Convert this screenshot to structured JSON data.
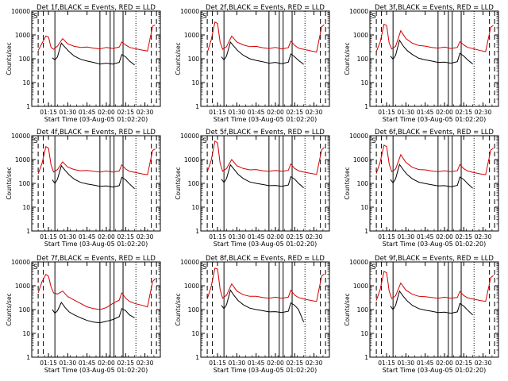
{
  "colors": {
    "events": "#000000",
    "lld": "#d40000",
    "axis": "#000000"
  },
  "chart_data": {
    "type": "line",
    "y_scale": "log",
    "ylim": [
      1,
      10000
    ],
    "ylabel": "Counts/sec",
    "xlabel": "Start Time (03-Aug-05 01:02:20)",
    "x_range": [
      "01:02",
      "02:42"
    ],
    "x_ticks": [
      "01:15",
      "01:30",
      "01:45",
      "02:00",
      "02:15",
      "02:30"
    ],
    "y_ticks": [
      "1",
      "10",
      "100",
      "1000",
      "10000"
    ],
    "shared_series": [
      {
        "name": "Events"
      },
      {
        "name": "LLD"
      }
    ],
    "marker_lines_dashed": [
      "01:07",
      "01:11",
      "02:35",
      "02:39"
    ],
    "marker_lines_solid": [
      "01:20",
      "01:55",
      "02:03",
      "02:06",
      "02:13"
    ],
    "marker_lines_dotted": [
      "02:23"
    ],
    "panels": [
      {
        "title": "Det 1f,BLACK = Events, RED = LLD",
        "corner": "S",
        "lld": {
          "x": [
            "01:07",
            "01:10",
            "01:13",
            "01:15",
            "01:17",
            "01:19",
            "01:22",
            "01:26",
            "01:30",
            "01:35",
            "01:40",
            "01:45",
            "01:50",
            "01:55",
            "02:00",
            "02:05",
            "02:10",
            "02:12",
            "02:15",
            "02:18",
            "02:22",
            "02:28",
            "02:32",
            "02:36",
            "02:38"
          ],
          "y": [
            220,
            450,
            900,
            820,
            300,
            250,
            340,
            700,
            420,
            330,
            300,
            310,
            280,
            260,
            300,
            270,
            310,
            500,
            380,
            300,
            270,
            230,
            210,
            2300,
            2600
          ]
        },
        "events": {
          "x": [
            "01:18",
            "01:20",
            "01:22",
            "01:25",
            "01:28",
            "01:31",
            "01:35",
            "01:40",
            "01:45",
            "01:50",
            "01:55",
            "02:00",
            "02:05",
            "02:10",
            "02:12",
            "02:15",
            "02:18",
            "02:22"
          ],
          "y": [
            110,
            90,
            120,
            450,
            300,
            200,
            130,
            95,
            80,
            70,
            60,
            65,
            60,
            70,
            150,
            120,
            80,
            55
          ]
        }
      },
      {
        "title": "Det 2f,BLACK = Events, RED = LLD",
        "corner": "S",
        "lld": {
          "x": [
            "01:07",
            "01:10",
            "01:13",
            "01:15",
            "01:17",
            "01:19",
            "01:22",
            "01:26",
            "01:30",
            "01:35",
            "01:40",
            "01:45",
            "01:50",
            "01:55",
            "02:00",
            "02:05",
            "02:10",
            "02:12",
            "02:15",
            "02:18",
            "02:22",
            "02:28",
            "02:32",
            "02:36",
            "02:38"
          ],
          "y": [
            180,
            600,
            3500,
            3000,
            500,
            250,
            320,
            900,
            500,
            380,
            320,
            330,
            290,
            270,
            300,
            260,
            290,
            550,
            360,
            280,
            250,
            210,
            190,
            2200,
            2700
          ]
        },
        "events": {
          "x": [
            "01:18",
            "01:20",
            "01:22",
            "01:25",
            "01:28",
            "01:31",
            "01:35",
            "01:40",
            "01:45",
            "01:50",
            "01:55",
            "02:00",
            "02:05",
            "02:10",
            "02:12",
            "02:15",
            "02:18",
            "02:22"
          ],
          "y": [
            120,
            90,
            130,
            500,
            320,
            210,
            140,
            100,
            85,
            75,
            65,
            70,
            62,
            72,
            160,
            120,
            85,
            58
          ]
        }
      },
      {
        "title": "Det 3f,BLACK = Events, RED = LLD",
        "corner": "S",
        "lld": {
          "x": [
            "01:07",
            "01:10",
            "01:13",
            "01:15",
            "01:17",
            "01:19",
            "01:22",
            "01:26",
            "01:30",
            "01:35",
            "01:40",
            "01:45",
            "01:50",
            "01:55",
            "02:00",
            "02:05",
            "02:10",
            "02:12",
            "02:15",
            "02:18",
            "02:22",
            "02:28",
            "02:32",
            "02:36",
            "02:38"
          ],
          "y": [
            200,
            500,
            2800,
            2500,
            450,
            260,
            330,
            1500,
            700,
            450,
            360,
            340,
            300,
            280,
            310,
            270,
            300,
            520,
            380,
            300,
            270,
            220,
            200,
            2100,
            2500
          ]
        },
        "events": {
          "x": [
            "01:18",
            "01:20",
            "01:22",
            "01:25",
            "01:28",
            "01:31",
            "01:35",
            "01:40",
            "01:45",
            "01:50",
            "01:55",
            "02:00",
            "02:05",
            "02:10",
            "02:12",
            "02:15",
            "02:18",
            "02:22"
          ],
          "y": [
            130,
            95,
            140,
            600,
            340,
            220,
            150,
            105,
            90,
            80,
            70,
            72,
            65,
            75,
            170,
            130,
            90,
            60
          ]
        }
      },
      {
        "title": "Det 4f,BLACK = Events, RED = LLD",
        "corner": "S",
        "lld": {
          "x": [
            "01:07",
            "01:10",
            "01:13",
            "01:15",
            "01:17",
            "01:19",
            "01:22",
            "01:26",
            "01:30",
            "01:35",
            "01:40",
            "01:45",
            "01:50",
            "01:55",
            "02:00",
            "02:05",
            "02:10",
            "02:12",
            "02:15",
            "02:18",
            "02:22",
            "02:28",
            "02:32",
            "02:36",
            "02:38"
          ],
          "y": [
            250,
            700,
            3500,
            3000,
            600,
            300,
            380,
            800,
            480,
            380,
            340,
            350,
            320,
            300,
            330,
            300,
            330,
            600,
            400,
            320,
            290,
            250,
            230,
            2400,
            2800
          ]
        },
        "events": {
          "x": [
            "01:18",
            "01:20",
            "01:22",
            "01:25",
            "01:28",
            "01:31",
            "01:35",
            "01:40",
            "01:45",
            "01:50",
            "01:55",
            "02:00",
            "02:05",
            "02:10",
            "02:12",
            "02:15",
            "02:18",
            "02:22"
          ],
          "y": [
            140,
            100,
            150,
            550,
            350,
            230,
            150,
            110,
            95,
            85,
            75,
            78,
            70,
            80,
            180,
            140,
            95,
            60
          ]
        }
      },
      {
        "title": "Det 5f,BLACK = Events, RED = LLD",
        "corner": "S",
        "lld": {
          "x": [
            "01:07",
            "01:10",
            "01:13",
            "01:15",
            "01:17",
            "01:19",
            "01:22",
            "01:26",
            "01:30",
            "01:35",
            "01:40",
            "01:45",
            "01:50",
            "01:55",
            "02:00",
            "02:05",
            "02:10",
            "02:12",
            "02:15",
            "02:18",
            "02:22",
            "02:28",
            "02:32",
            "02:36",
            "02:38"
          ],
          "y": [
            300,
            900,
            6000,
            5000,
            700,
            320,
            420,
            1000,
            550,
            420,
            370,
            380,
            340,
            320,
            350,
            320,
            350,
            650,
            420,
            340,
            300,
            260,
            240,
            2600,
            3200
          ]
        },
        "events": {
          "x": [
            "01:18",
            "01:20",
            "01:22",
            "01:25",
            "01:28",
            "01:31",
            "01:35",
            "01:40",
            "01:45",
            "01:50",
            "01:55",
            "02:00",
            "02:05",
            "02:10",
            "02:12",
            "02:15",
            "02:18",
            "02:22"
          ],
          "y": [
            150,
            110,
            160,
            600,
            380,
            240,
            160,
            115,
            100,
            90,
            80,
            82,
            75,
            85,
            190,
            150,
            100,
            65
          ]
        }
      },
      {
        "title": "Det 6f,BLACK = Events, RED = LLD",
        "corner": "S",
        "lld": {
          "x": [
            "01:07",
            "01:10",
            "01:13",
            "01:15",
            "01:17",
            "01:19",
            "01:22",
            "01:26",
            "01:30",
            "01:35",
            "01:40",
            "01:45",
            "01:50",
            "01:55",
            "02:00",
            "02:05",
            "02:10",
            "02:12",
            "02:15",
            "02:18",
            "02:22",
            "02:28",
            "02:32",
            "02:36",
            "02:38"
          ],
          "y": [
            260,
            800,
            4000,
            3500,
            650,
            310,
            400,
            1600,
            750,
            470,
            380,
            370,
            330,
            310,
            340,
            310,
            340,
            620,
            410,
            330,
            290,
            250,
            230,
            2500,
            3000
          ]
        },
        "events": {
          "x": [
            "01:18",
            "01:20",
            "01:22",
            "01:25",
            "01:28",
            "01:31",
            "01:35",
            "01:40",
            "01:45",
            "01:50",
            "01:55",
            "02:00",
            "02:05",
            "02:10",
            "02:12",
            "02:15",
            "02:18",
            "02:22"
          ],
          "y": [
            145,
            105,
            155,
            620,
            370,
            235,
            155,
            112,
            98,
            88,
            78,
            80,
            72,
            82,
            185,
            145,
            98,
            62
          ]
        }
      },
      {
        "title": "Det 7f,BLACK = Events, RED = LLD",
        "corner": "S",
        "lld": {
          "x": [
            "01:07",
            "01:10",
            "01:13",
            "01:15",
            "01:17",
            "01:19",
            "01:22",
            "01:26",
            "01:30",
            "01:35",
            "01:40",
            "01:45",
            "01:50",
            "01:55",
            "02:00",
            "02:05",
            "02:10",
            "02:12",
            "02:15",
            "02:18",
            "02:22",
            "02:28",
            "02:32",
            "02:36",
            "02:38"
          ],
          "y": [
            500,
            1500,
            3000,
            2500,
            900,
            500,
            450,
            600,
            350,
            250,
            180,
            130,
            110,
            100,
            120,
            180,
            250,
            500,
            300,
            220,
            180,
            150,
            130,
            1500,
            2000
          ]
        },
        "events": {
          "x": [
            "01:18",
            "01:20",
            "01:22",
            "01:25",
            "01:28",
            "01:31",
            "01:35",
            "01:40",
            "01:45",
            "01:50",
            "01:55",
            "02:00",
            "02:05",
            "02:10",
            "02:12",
            "02:15",
            "02:18",
            "02:22"
          ],
          "y": [
            100,
            70,
            90,
            200,
            120,
            80,
            60,
            45,
            35,
            30,
            28,
            32,
            38,
            50,
            110,
            90,
            60,
            45
          ]
        }
      },
      {
        "title": "Det 8f,BLACK = Events, RED = LLD",
        "corner": "S",
        "lld": {
          "x": [
            "01:07",
            "01:10",
            "01:13",
            "01:15",
            "01:17",
            "01:19",
            "01:22",
            "01:26",
            "01:30",
            "01:35",
            "01:40",
            "01:45",
            "01:50",
            "01:55",
            "02:00",
            "02:05",
            "02:10",
            "02:12",
            "02:15",
            "02:18",
            "02:22",
            "02:28",
            "02:32",
            "02:36",
            "02:38"
          ],
          "y": [
            280,
            900,
            5500,
            5000,
            700,
            300,
            400,
            1200,
            600,
            420,
            360,
            360,
            320,
            300,
            330,
            300,
            330,
            650,
            400,
            320,
            280,
            240,
            220,
            2600,
            3100
          ]
        },
        "events": {
          "x": [
            "01:18",
            "01:20",
            "01:22",
            "01:25",
            "01:28",
            "01:31",
            "01:35",
            "01:40",
            "01:45",
            "01:50",
            "01:55",
            "02:00",
            "02:05",
            "02:10",
            "02:12",
            "02:15",
            "02:18",
            "02:22"
          ],
          "y": [
            150,
            110,
            160,
            650,
            380,
            240,
            160,
            115,
            100,
            90,
            80,
            82,
            75,
            85,
            190,
            150,
            100,
            30
          ]
        }
      },
      {
        "title": "Det 9f,BLACK = Events, RED = LLD",
        "corner": "S",
        "lld": {
          "x": [
            "01:07",
            "01:10",
            "01:13",
            "01:15",
            "01:17",
            "01:19",
            "01:22",
            "01:26",
            "01:30",
            "01:35",
            "01:40",
            "01:45",
            "01:50",
            "01:55",
            "02:00",
            "02:05",
            "02:10",
            "02:12",
            "02:15",
            "02:18",
            "02:22",
            "02:28",
            "02:32",
            "02:36",
            "02:38"
          ],
          "y": [
            240,
            700,
            4000,
            3500,
            600,
            290,
            380,
            1300,
            650,
            440,
            360,
            350,
            320,
            300,
            330,
            300,
            320,
            580,
            390,
            310,
            280,
            240,
            220,
            2200,
            2700
          ]
        },
        "events": {
          "x": [
            "01:18",
            "01:20",
            "01:22",
            "01:25",
            "01:28",
            "01:31",
            "01:35",
            "01:40",
            "01:45",
            "01:50",
            "01:55",
            "02:00",
            "02:05",
            "02:10",
            "02:12",
            "02:15",
            "02:18",
            "02:22"
          ],
          "y": [
            140,
            100,
            150,
            600,
            360,
            230,
            150,
            110,
            95,
            85,
            75,
            78,
            70,
            80,
            180,
            140,
            95,
            60
          ]
        }
      }
    ]
  }
}
